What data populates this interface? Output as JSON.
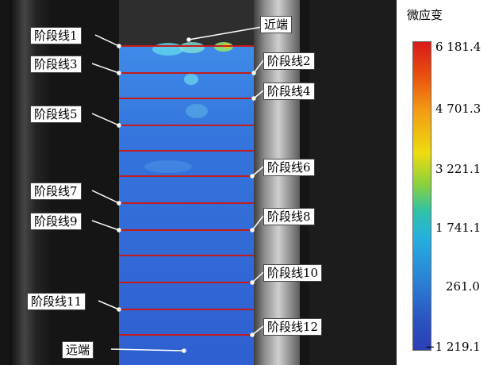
{
  "figure": {
    "near_end_label": "近端",
    "far_end_label": "远端",
    "stage_lines": [
      {
        "label": "阶段线1"
      },
      {
        "label": "阶段线2"
      },
      {
        "label": "阶段线3"
      },
      {
        "label": "阶段线4"
      },
      {
        "label": "阶段线5"
      },
      {
        "label": "阶段线6"
      },
      {
        "label": "阶段线7"
      },
      {
        "label": "阶段线8"
      },
      {
        "label": "阶段线9"
      },
      {
        "label": "阶段线10"
      },
      {
        "label": "阶段线11"
      },
      {
        "label": "阶段线12"
      }
    ]
  },
  "colorbar": {
    "title": "微应变",
    "ticks": [
      "6 181.4",
      "4 701.3",
      "3 221.1",
      "1 741.1",
      "261.0",
      "−1 219.1"
    ],
    "colors": [
      "#d81a1a",
      "#f39a12",
      "#eedc10",
      "#2fc2a9",
      "#2b7fd4",
      "#2a3fb4"
    ]
  }
}
